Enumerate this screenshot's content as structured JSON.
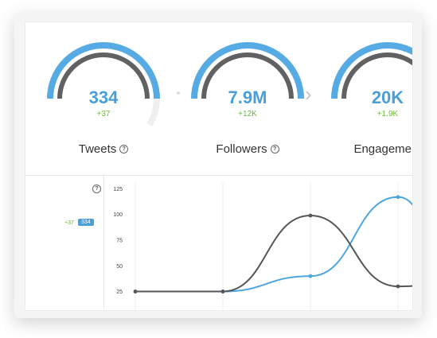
{
  "stats": [
    {
      "label": "Tweets",
      "value": "334",
      "delta": "+37"
    },
    {
      "label": "Followers",
      "value": "7.9M",
      "delta": "+12K"
    },
    {
      "label": "Engagement",
      "value": "20K",
      "delta": "+1.9K"
    }
  ],
  "chart_data": {
    "type": "line",
    "y_ticks": [
      "125",
      "100",
      "75",
      "50",
      "25"
    ],
    "ylim": [
      20,
      130
    ],
    "grid": true,
    "legend": {
      "delta": "+37",
      "value": "334"
    },
    "series": [
      {
        "color": "#4ea6e0",
        "x": [
          0,
          1,
          2,
          3,
          3.4
        ],
        "values": [
          25,
          25,
          40,
          117,
          95
        ]
      },
      {
        "color": "#555555",
        "x": [
          0,
          1,
          2,
          3,
          3.4
        ],
        "values": [
          25,
          25,
          99,
          30,
          31
        ]
      }
    ]
  },
  "colors": {
    "accent": "#4a9fd8",
    "positive": "#6dbb3c",
    "gauge_inner": "#616161"
  }
}
